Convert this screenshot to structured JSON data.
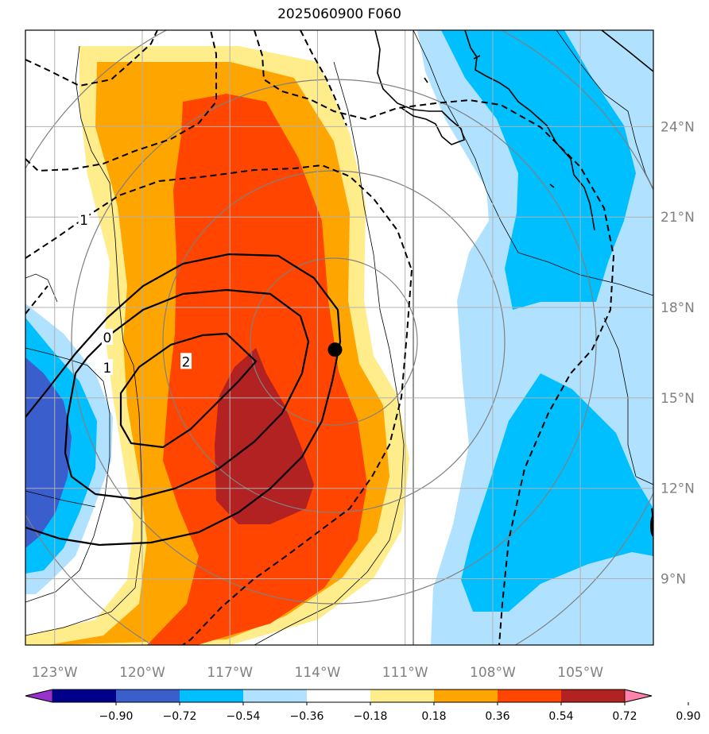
{
  "title": "2025060900 F060",
  "map": {
    "lon_range": [
      -124,
      -102.5
    ],
    "lat_range": [
      6.8,
      27.2
    ],
    "gridlines": true,
    "lon_ticks": [
      {
        "value": -123,
        "label": "123°W"
      },
      {
        "value": -120,
        "label": "120°W"
      },
      {
        "value": -117,
        "label": "117°W"
      },
      {
        "value": -114,
        "label": "114°W"
      },
      {
        "value": -111,
        "label": "111°W"
      },
      {
        "value": -108,
        "label": "108°W"
      },
      {
        "value": -105,
        "label": "105°W"
      }
    ],
    "lat_ticks": [
      {
        "value": 9,
        "label": "9°N"
      },
      {
        "value": 12,
        "label": "12°N"
      },
      {
        "value": 15,
        "label": "15°N"
      },
      {
        "value": 18,
        "label": "18°N"
      },
      {
        "value": 21,
        "label": "21°N"
      },
      {
        "value": 24,
        "label": "24°N"
      }
    ],
    "marker": {
      "lon": -113.4,
      "lat": 16.6,
      "color": "#000000"
    },
    "contour_labels": [
      {
        "text": "0",
        "lon": -121.2,
        "lat": 17.0
      },
      {
        "text": "1",
        "lon": -121.2,
        "lat": 16.0
      },
      {
        "text": "2",
        "lon": -118.5,
        "lat": 16.2
      },
      {
        "text": "1",
        "lon": -122.0,
        "lat": 20.9
      }
    ]
  },
  "colorbar": {
    "colors": [
      "#9932cc",
      "#00008b",
      "#3a5fcd",
      "#00bfff",
      "#b0e2ff",
      "#ffffff",
      "#ffec8b",
      "#ffa500",
      "#ff4500",
      "#b22222",
      "#ff82ab"
    ],
    "levels": [
      "−0.90",
      "−0.72",
      "−0.54",
      "−0.36",
      "−0.18",
      "0.18",
      "0.36",
      "0.54",
      "0.72",
      "0.90"
    ],
    "extend": "both"
  }
}
